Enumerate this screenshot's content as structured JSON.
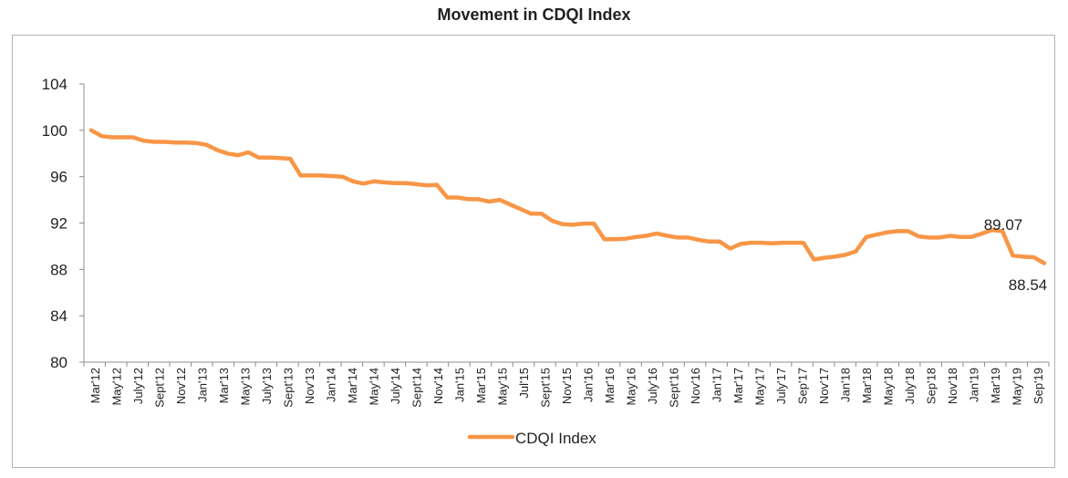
{
  "chart_data": {
    "type": "line",
    "title": "Movement in CDQI Index",
    "xlabel": "",
    "ylabel": "",
    "ylim": [
      80,
      104
    ],
    "yticks": [
      80,
      84,
      88,
      92,
      96,
      100,
      104
    ],
    "grid": false,
    "legend_position": "bottom",
    "x_tick_labels": [
      "Mar'12",
      "May'12",
      "July'12",
      "Sept'12",
      "Nov'12",
      "Jan'13",
      "Mar'13",
      "May'13",
      "July'13",
      "Sept'13",
      "Nov'13",
      "Jan'14",
      "Mar'14",
      "May'14",
      "July'14",
      "Sept'14",
      "Nov'14",
      "Jan'15",
      "Mar'15",
      "May'15",
      "Jul'15",
      "Sept'15",
      "Nov'15",
      "Jan'16",
      "Mar'16",
      "May'16",
      "July'16",
      "Sept'16",
      "Nov'16",
      "Jan'17",
      "Mar'17",
      "May'17",
      "July'17",
      "Sep'17",
      "Nov'17",
      "Jan'18",
      "Mar'18",
      "May'18",
      "July'18",
      "Sep'18",
      "Nov'18",
      "Jan'19",
      "Mar'19",
      "May'19",
      "Sep'19"
    ],
    "series": [
      {
        "name": "CDQI Index",
        "color": "#F79646",
        "values": [
          100.0,
          99.5,
          99.4,
          99.4,
          99.4,
          99.1,
          99.0,
          99.0,
          98.95,
          98.95,
          98.9,
          98.75,
          98.3,
          98.0,
          97.85,
          98.1,
          97.65,
          97.65,
          97.6,
          97.55,
          96.1,
          96.1,
          96.1,
          96.05,
          96.0,
          95.6,
          95.4,
          95.6,
          95.5,
          95.45,
          95.45,
          95.35,
          95.25,
          95.3,
          94.2,
          94.2,
          94.05,
          94.05,
          93.85,
          94.0,
          93.6,
          93.2,
          92.8,
          92.8,
          92.2,
          91.9,
          91.85,
          91.95,
          91.95,
          90.6,
          90.6,
          90.65,
          90.8,
          90.9,
          91.1,
          90.9,
          90.75,
          90.75,
          90.55,
          90.4,
          90.4,
          89.8,
          90.2,
          90.3,
          90.3,
          90.25,
          90.3,
          90.3,
          90.3,
          88.85,
          89.0,
          89.1,
          89.25,
          89.55,
          90.8,
          91.0,
          91.2,
          91.3,
          91.3,
          90.85,
          90.75,
          90.75,
          90.9,
          90.8,
          90.8,
          91.07,
          91.4,
          91.3,
          89.2,
          89.1,
          89.05,
          88.54
        ]
      }
    ],
    "annotations": [
      {
        "text": "89.07"
      },
      {
        "text": "88.54"
      }
    ]
  }
}
